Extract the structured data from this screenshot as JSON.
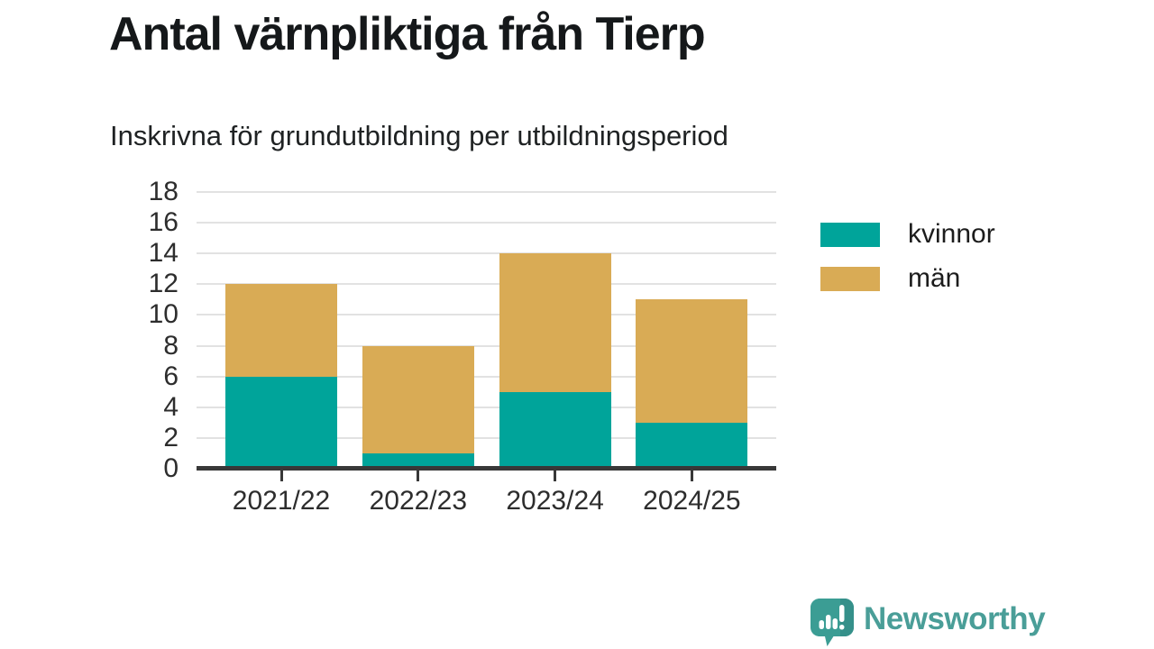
{
  "header": {
    "title": "Antal värnpliktiga från Tierp",
    "subtitle": "Inskrivna för grundutbildning per utbildningsperiod"
  },
  "chart_data": {
    "type": "bar",
    "stacked": true,
    "title": "Antal värnpliktiga från Tierp",
    "subtitle": "Inskrivna för grundutbildning per utbildningsperiod",
    "categories": [
      "2021/22",
      "2022/23",
      "2023/24",
      "2024/25"
    ],
    "series": [
      {
        "name": "kvinnor",
        "color": "#00a49a",
        "values": [
          6,
          1,
          5,
          3
        ]
      },
      {
        "name": "män",
        "color": "#d9ab55",
        "values": [
          6,
          7,
          9,
          8
        ]
      }
    ],
    "stack_totals": [
      12,
      8,
      14,
      11
    ],
    "xlabel": "",
    "ylabel": "",
    "ylim": [
      0,
      18
    ],
    "ytick_step": 2,
    "yticks": [
      0,
      2,
      4,
      6,
      8,
      10,
      12,
      14,
      16,
      18
    ],
    "grid": "horizontal",
    "legend_position": "right",
    "axis_color": "#383838",
    "gridline_color": "#e2e2e2"
  },
  "footer": {
    "brand": "Newsworthy",
    "logo_icon": "speech-bubble-bar-chart-icon",
    "brand_color": "#4a9e98",
    "icon_color": "#3b9d94"
  }
}
